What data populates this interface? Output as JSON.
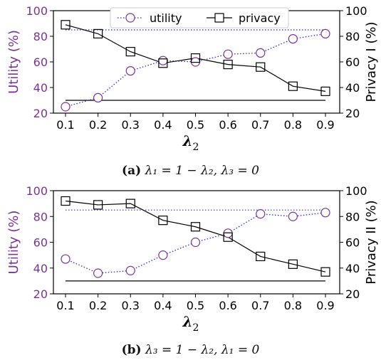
{
  "colors": {
    "utility": "#7b3294",
    "utility_line": "#2b2bd6",
    "privacy": "#000000"
  },
  "chart_data": [
    {
      "type": "line",
      "x": [
        0.1,
        0.2,
        0.3,
        0.4,
        0.5,
        0.6,
        0.7,
        0.8,
        0.9
      ],
      "x_tick_labels": [
        "0.1",
        "0.2",
        "0.3",
        "0.4",
        "0.5",
        "0.6",
        "0.7",
        "0.8",
        "0.9"
      ],
      "xlabel": "λ",
      "xlabel_sub": "2",
      "y_left": {
        "label": "Utility (%)",
        "ylim": [
          20,
          100
        ],
        "ticks": [
          20,
          40,
          60,
          80,
          100
        ]
      },
      "y_right": {
        "label": "Privacy I (%)",
        "ylim": [
          20,
          100
        ],
        "ticks": [
          20,
          40,
          60,
          80,
          100
        ]
      },
      "series": [
        {
          "name": "utility",
          "axis": "left",
          "marker": "circle",
          "linestyle": "dotted",
          "values": [
            25,
            32,
            53,
            61,
            60,
            66,
            67,
            78,
            82
          ],
          "reference": 85
        },
        {
          "name": "privacy",
          "axis": "right",
          "marker": "square",
          "linestyle": "solid",
          "values": [
            89,
            82,
            68,
            59,
            63,
            58,
            56,
            41,
            37
          ],
          "reference": 30
        }
      ],
      "legend": "top-center",
      "caption_tag": "(a)",
      "caption_text": "λ₁ = 1 − λ₂, λ₃ = 0"
    },
    {
      "type": "line",
      "x": [
        0.1,
        0.2,
        0.3,
        0.4,
        0.5,
        0.6,
        0.7,
        0.8,
        0.9
      ],
      "x_tick_labels": [
        "0.1",
        "0.2",
        "0.3",
        "0.4",
        "0.5",
        "0.6",
        "0.7",
        "0.8",
        "0.9"
      ],
      "xlabel": "λ",
      "xlabel_sub": "2",
      "y_left": {
        "label": "Utility (%)",
        "ylim": [
          20,
          100
        ],
        "ticks": [
          20,
          40,
          60,
          80,
          100
        ]
      },
      "y_right": {
        "label": "Privacy II (%)",
        "ylim": [
          20,
          100
        ],
        "ticks": [
          20,
          40,
          60,
          80,
          100
        ]
      },
      "series": [
        {
          "name": "utility",
          "axis": "left",
          "marker": "circle",
          "linestyle": "dotted",
          "values": [
            47,
            36,
            38,
            50,
            60,
            67,
            82,
            80,
            83
          ],
          "reference": 85
        },
        {
          "name": "privacy",
          "axis": "right",
          "marker": "square",
          "linestyle": "solid",
          "values": [
            92,
            89,
            90,
            77,
            72,
            64,
            49,
            43,
            37
          ],
          "reference": 30
        }
      ],
      "caption_tag": "(b)",
      "caption_text": "λ₃ = 1 − λ₂, λ₁ = 0"
    }
  ]
}
